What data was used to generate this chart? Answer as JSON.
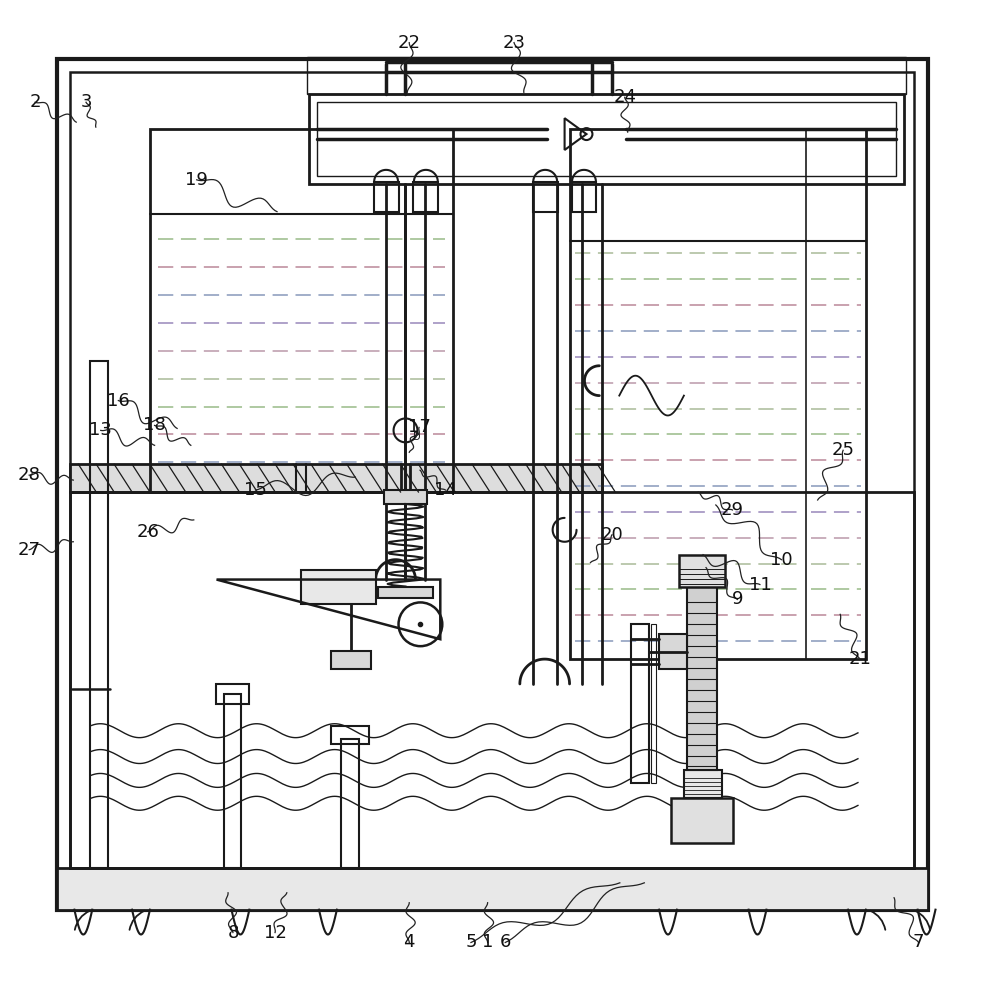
{
  "bg_color": "#ffffff",
  "lc": "#1a1a1a",
  "wc": [
    "#8899bb",
    "#bb8899",
    "#99bb88",
    "#aabb99",
    "#bb99aa",
    "#9988bb"
  ],
  "fs_label": 13,
  "lw_outer": 2.5,
  "lw_main": 1.8,
  "lw_thin": 1.1,
  "annotations": {
    "1": [
      0.495,
      0.055,
      0.495,
      0.095
    ],
    "2": [
      0.033,
      0.9,
      0.075,
      0.88
    ],
    "3": [
      0.085,
      0.9,
      0.095,
      0.875
    ],
    "4": [
      0.415,
      0.055,
      0.415,
      0.095
    ],
    "5": [
      0.478,
      0.055,
      0.63,
      0.115
    ],
    "6": [
      0.513,
      0.055,
      0.655,
      0.115
    ],
    "7": [
      0.935,
      0.055,
      0.91,
      0.1
    ],
    "8": [
      0.235,
      0.065,
      0.23,
      0.105
    ],
    "9": [
      0.75,
      0.4,
      0.718,
      0.432
    ],
    "10": [
      0.795,
      0.44,
      0.728,
      0.495
    ],
    "11": [
      0.773,
      0.415,
      0.715,
      0.445
    ],
    "12": [
      0.278,
      0.065,
      0.29,
      0.105
    ],
    "13": [
      0.1,
      0.57,
      0.155,
      0.555
    ],
    "14": [
      0.452,
      0.51,
      0.426,
      0.53
    ],
    "15": [
      0.258,
      0.51,
      0.36,
      0.523
    ],
    "16": [
      0.118,
      0.6,
      0.178,
      0.572
    ],
    "17": [
      0.425,
      0.573,
      0.415,
      0.548
    ],
    "18": [
      0.155,
      0.575,
      0.192,
      0.555
    ],
    "19": [
      0.198,
      0.822,
      0.28,
      0.79
    ],
    "20": [
      0.622,
      0.465,
      0.6,
      0.437
    ],
    "21": [
      0.875,
      0.34,
      0.855,
      0.385
    ],
    "22": [
      0.415,
      0.96,
      0.413,
      0.91
    ],
    "23": [
      0.522,
      0.96,
      0.532,
      0.91
    ],
    "24": [
      0.635,
      0.905,
      0.638,
      0.87
    ],
    "25": [
      0.858,
      0.55,
      0.832,
      0.5
    ],
    "26": [
      0.148,
      0.468,
      0.195,
      0.48
    ],
    "27": [
      0.027,
      0.45,
      0.072,
      0.458
    ],
    "28": [
      0.027,
      0.525,
      0.072,
      0.52
    ],
    "29": [
      0.745,
      0.49,
      0.71,
      0.508
    ]
  }
}
